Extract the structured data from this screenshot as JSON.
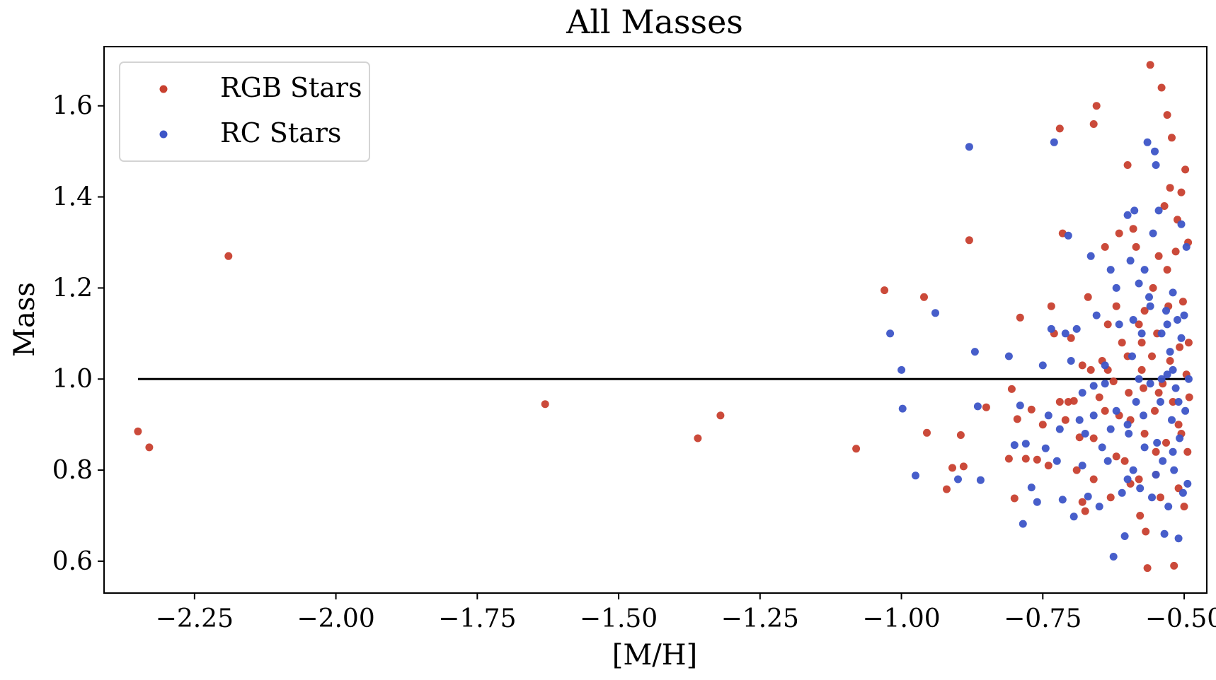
{
  "chart_data": {
    "type": "scatter",
    "title": "All Masses",
    "xlabel": "[M/H]",
    "ylabel": "Mass",
    "xlim": [
      -2.41,
      -0.46
    ],
    "ylim": [
      0.53,
      1.73
    ],
    "xticks": [
      -2.25,
      -2.0,
      -1.75,
      -1.5,
      -1.25,
      -1.0,
      -0.75,
      -0.5
    ],
    "xtick_labels": [
      "−2.25",
      "−2.00",
      "−1.75",
      "−1.50",
      "−1.25",
      "−1.00",
      "−0.75",
      "−0.50"
    ],
    "yticks": [
      0.6,
      0.8,
      1.0,
      1.2,
      1.4,
      1.6
    ],
    "ytick_labels": [
      "0.6",
      "0.8",
      "1.0",
      "1.2",
      "1.4",
      "1.6"
    ],
    "grid": false,
    "legend_position": "top-left",
    "reference_line": {
      "y": 1.0,
      "x": [
        -2.35,
        -0.49
      ],
      "color": "#000000"
    },
    "series": [
      {
        "name": "RGB Stars",
        "color": "#c8402f",
        "points": [
          [
            -2.35,
            0.885
          ],
          [
            -2.33,
            0.85
          ],
          [
            -2.19,
            1.27
          ],
          [
            -1.63,
            0.945
          ],
          [
            -1.36,
            0.87
          ],
          [
            -1.32,
            0.92
          ],
          [
            -1.08,
            0.847
          ],
          [
            -1.03,
            1.195
          ],
          [
            -0.96,
            1.18
          ],
          [
            -0.955,
            0.882
          ],
          [
            -0.92,
            0.758
          ],
          [
            -0.91,
            0.805
          ],
          [
            -0.895,
            0.877
          ],
          [
            -0.89,
            0.808
          ],
          [
            -0.88,
            1.305
          ],
          [
            -0.85,
            0.938
          ],
          [
            -0.81,
            0.825
          ],
          [
            -0.805,
            0.978
          ],
          [
            -0.8,
            0.738
          ],
          [
            -0.795,
            0.912
          ],
          [
            -0.79,
            1.135
          ],
          [
            -0.78,
            0.825
          ],
          [
            -0.77,
            0.933
          ],
          [
            -0.76,
            0.823
          ],
          [
            -0.75,
            0.9
          ],
          [
            -0.74,
            0.81
          ],
          [
            -0.735,
            1.16
          ],
          [
            -0.73,
            1.1
          ],
          [
            -0.72,
            1.55
          ],
          [
            -0.715,
            1.32
          ],
          [
            -0.71,
            0.91
          ],
          [
            -0.705,
            0.95
          ],
          [
            -0.7,
            1.09
          ],
          [
            -0.695,
            0.952
          ],
          [
            -0.69,
            0.8
          ],
          [
            -0.685,
            0.872
          ],
          [
            -0.68,
            0.73
          ],
          [
            -0.675,
            0.71
          ],
          [
            -0.67,
            1.18
          ],
          [
            -0.665,
            1.02
          ],
          [
            -0.66,
            0.87
          ],
          [
            -0.66,
            1.56
          ],
          [
            -0.655,
            1.6
          ],
          [
            -0.65,
            0.96
          ],
          [
            -0.645,
            1.04
          ],
          [
            -0.64,
            0.93
          ],
          [
            -0.635,
            1.12
          ],
          [
            -0.63,
            0.74
          ],
          [
            -0.625,
            0.995
          ],
          [
            -0.62,
            1.16
          ],
          [
            -0.615,
            1.32
          ],
          [
            -0.61,
            1.08
          ],
          [
            -0.605,
            0.82
          ],
          [
            -0.6,
            1.47
          ],
          [
            -0.598,
            0.97
          ],
          [
            -0.595,
            0.77
          ],
          [
            -0.59,
            1.33
          ],
          [
            -0.585,
            1.29
          ],
          [
            -0.58,
            1.12
          ],
          [
            -0.578,
            0.7
          ],
          [
            -0.575,
            1.02
          ],
          [
            -0.572,
            0.98
          ],
          [
            -0.57,
            0.88
          ],
          [
            -0.568,
            0.665
          ],
          [
            -0.565,
            0.585
          ],
          [
            -0.56,
            1.69
          ],
          [
            -0.557,
            1.05
          ],
          [
            -0.555,
            1.2
          ],
          [
            -0.552,
            0.93
          ],
          [
            -0.55,
            0.79
          ],
          [
            -0.548,
            1.1
          ],
          [
            -0.545,
            1.27
          ],
          [
            -0.542,
            0.74
          ],
          [
            -0.54,
            1.64
          ],
          [
            -0.538,
            0.99
          ],
          [
            -0.535,
            1.38
          ],
          [
            -0.532,
            0.86
          ],
          [
            -0.53,
            1.58
          ],
          [
            -0.528,
            1.16
          ],
          [
            -0.525,
            1.42
          ],
          [
            -0.522,
            1.53
          ],
          [
            -0.52,
            0.95
          ],
          [
            -0.518,
            0.59
          ],
          [
            -0.515,
            1.28
          ],
          [
            -0.512,
            1.35
          ],
          [
            -0.51,
            0.9
          ],
          [
            -0.508,
            1.07
          ],
          [
            -0.505,
            1.41
          ],
          [
            -0.502,
            1.17
          ],
          [
            -0.5,
            0.72
          ],
          [
            -0.498,
            1.46
          ],
          [
            -0.496,
            1.01
          ],
          [
            -0.494,
            0.84
          ],
          [
            -0.493,
            1.3
          ],
          [
            -0.492,
            1.08
          ],
          [
            -0.491,
            0.96
          ],
          [
            -0.64,
            1.29
          ],
          [
            -0.62,
            0.83
          ],
          [
            -0.6,
            1.05
          ],
          [
            -0.58,
            0.78
          ],
          [
            -0.57,
            1.15
          ],
          [
            -0.55,
            0.84
          ],
          [
            -0.53,
            1.24
          ],
          [
            -0.51,
            0.76
          ],
          [
            -0.66,
            0.78
          ],
          [
            -0.68,
            1.03
          ],
          [
            -0.72,
            0.95
          ],
          [
            -0.615,
            0.92
          ],
          [
            -0.595,
            0.91
          ],
          [
            -0.575,
            1.08
          ],
          [
            -0.545,
            0.97
          ],
          [
            -0.525,
            1.04
          ],
          [
            -0.505,
            0.88
          ],
          [
            -0.635,
            1.02
          ]
        ]
      },
      {
        "name": "RC Stars",
        "color": "#3d55c7",
        "points": [
          [
            -1.02,
            1.1
          ],
          [
            -1.0,
            1.02
          ],
          [
            -0.998,
            0.935
          ],
          [
            -0.975,
            0.788
          ],
          [
            -0.94,
            1.145
          ],
          [
            -0.9,
            0.78
          ],
          [
            -0.88,
            1.51
          ],
          [
            -0.87,
            1.06
          ],
          [
            -0.865,
            0.94
          ],
          [
            -0.86,
            0.778
          ],
          [
            -0.81,
            1.05
          ],
          [
            -0.8,
            0.855
          ],
          [
            -0.79,
            0.942
          ],
          [
            -0.785,
            0.682
          ],
          [
            -0.78,
            0.858
          ],
          [
            -0.77,
            0.762
          ],
          [
            -0.76,
            0.73
          ],
          [
            -0.75,
            1.03
          ],
          [
            -0.745,
            0.848
          ],
          [
            -0.74,
            0.92
          ],
          [
            -0.735,
            1.11
          ],
          [
            -0.73,
            1.52
          ],
          [
            -0.725,
            0.82
          ],
          [
            -0.72,
            0.89
          ],
          [
            -0.715,
            0.735
          ],
          [
            -0.71,
            1.1
          ],
          [
            -0.705,
            1.315
          ],
          [
            -0.7,
            1.04
          ],
          [
            -0.695,
            0.698
          ],
          [
            -0.69,
            1.11
          ],
          [
            -0.685,
            0.91
          ],
          [
            -0.68,
            0.81
          ],
          [
            -0.675,
            0.88
          ],
          [
            -0.67,
            0.742
          ],
          [
            -0.665,
            1.27
          ],
          [
            -0.66,
            0.985
          ],
          [
            -0.655,
            1.14
          ],
          [
            -0.65,
            0.72
          ],
          [
            -0.645,
            0.85
          ],
          [
            -0.64,
            1.03
          ],
          [
            -0.635,
            0.82
          ],
          [
            -0.63,
            1.24
          ],
          [
            -0.625,
            0.61
          ],
          [
            -0.62,
            0.93
          ],
          [
            -0.615,
            1.12
          ],
          [
            -0.61,
            0.75
          ],
          [
            -0.605,
            0.655
          ],
          [
            -0.6,
            1.36
          ],
          [
            -0.598,
            0.88
          ],
          [
            -0.595,
            1.26
          ],
          [
            -0.592,
            1.05
          ],
          [
            -0.59,
            0.8
          ],
          [
            -0.588,
            1.37
          ],
          [
            -0.585,
            0.95
          ],
          [
            -0.58,
            1.21
          ],
          [
            -0.578,
            0.76
          ],
          [
            -0.575,
            1.1
          ],
          [
            -0.572,
            0.92
          ],
          [
            -0.57,
            0.85
          ],
          [
            -0.565,
            1.52
          ],
          [
            -0.562,
            1.18
          ],
          [
            -0.56,
            0.99
          ],
          [
            -0.557,
            0.74
          ],
          [
            -0.555,
            1.32
          ],
          [
            -0.552,
            1.5
          ],
          [
            -0.55,
            1.47
          ],
          [
            -0.548,
            0.86
          ],
          [
            -0.545,
            1.37
          ],
          [
            -0.542,
            0.95
          ],
          [
            -0.54,
            1.1
          ],
          [
            -0.538,
            0.82
          ],
          [
            -0.535,
            0.66
          ],
          [
            -0.532,
            1.15
          ],
          [
            -0.53,
            1.01
          ],
          [
            -0.528,
            0.72
          ],
          [
            -0.525,
            1.06
          ],
          [
            -0.522,
            0.91
          ],
          [
            -0.52,
            1.19
          ],
          [
            -0.518,
            0.8
          ],
          [
            -0.515,
            0.98
          ],
          [
            -0.512,
            1.13
          ],
          [
            -0.51,
            0.65
          ],
          [
            -0.508,
            0.87
          ],
          [
            -0.505,
            1.34
          ],
          [
            -0.502,
            0.75
          ],
          [
            -0.5,
            1.14
          ],
          [
            -0.498,
            0.93
          ],
          [
            -0.496,
            1.29
          ],
          [
            -0.494,
            0.77
          ],
          [
            -0.492,
            1.0
          ],
          [
            -0.64,
            0.99
          ],
          [
            -0.62,
            1.2
          ],
          [
            -0.6,
            0.9
          ],
          [
            -0.58,
            1.0
          ],
          [
            -0.56,
            1.16
          ],
          [
            -0.54,
            1.0
          ],
          [
            -0.52,
            0.84
          ],
          [
            -0.505,
            1.09
          ],
          [
            -0.66,
            0.92
          ],
          [
            -0.6,
            0.78
          ],
          [
            -0.57,
            1.24
          ],
          [
            -0.53,
            1.12
          ],
          [
            -0.51,
            0.95
          ],
          [
            -0.68,
            0.97
          ],
          [
            -0.63,
            0.89
          ],
          [
            -0.59,
            1.13
          ],
          [
            -0.55,
            0.79
          ],
          [
            -0.52,
            1.02
          ]
        ]
      }
    ]
  }
}
